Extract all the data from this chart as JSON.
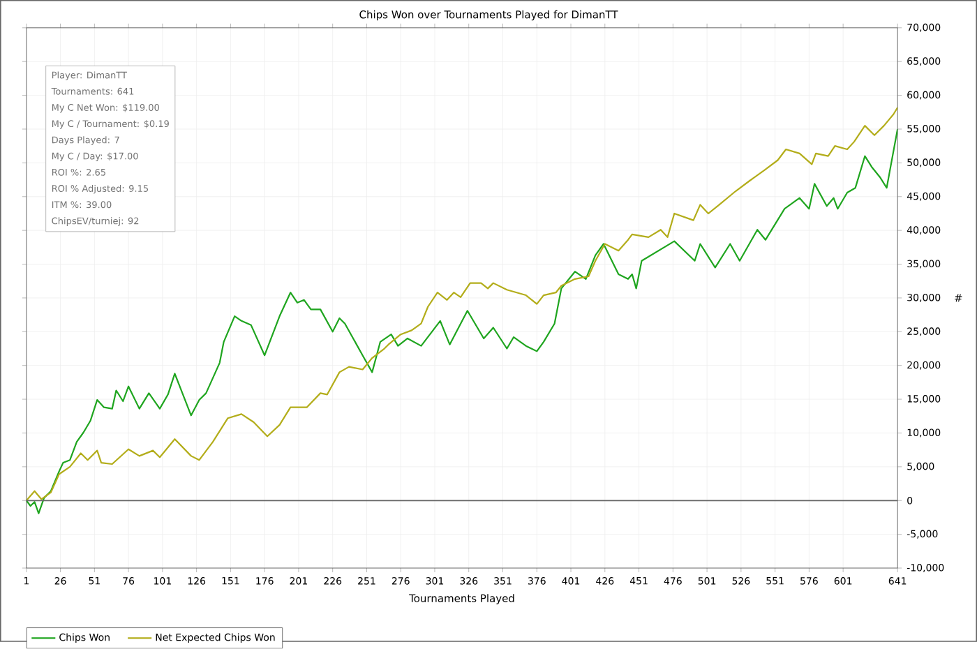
{
  "chart_data": {
    "type": "line",
    "title": "Chips Won over Tournaments Played for DimanTT",
    "xlabel": "Tournaments Played",
    "ylabel": "#",
    "xlim": [
      1,
      641
    ],
    "xticks": [
      1,
      26,
      51,
      76,
      101,
      126,
      151,
      176,
      201,
      226,
      251,
      276,
      301,
      326,
      351,
      376,
      401,
      426,
      451,
      476,
      501,
      526,
      551,
      576,
      601,
      641
    ],
    "ylim": [
      -10000,
      70000
    ],
    "yticks": [
      {
        "value": -10000,
        "label": "-10,000"
      },
      {
        "value": -5000,
        "label": "-5,000"
      },
      {
        "value": 0,
        "label": "0"
      },
      {
        "value": 5000,
        "label": "5,000"
      },
      {
        "value": 10000,
        "label": "10,000"
      },
      {
        "value": 15000,
        "label": "15,000"
      },
      {
        "value": 20000,
        "label": "20,000"
      },
      {
        "value": 25000,
        "label": "25,000"
      },
      {
        "value": 30000,
        "label": "30,000"
      },
      {
        "value": 35000,
        "label": "35,000"
      },
      {
        "value": 40000,
        "label": "40,000"
      },
      {
        "value": 45000,
        "label": "45,000"
      },
      {
        "value": 50000,
        "label": "50,000"
      },
      {
        "value": 55000,
        "label": "55,000"
      },
      {
        "value": 60000,
        "label": "60,000"
      },
      {
        "value": 65000,
        "label": "65,000"
      },
      {
        "value": 70000,
        "label": "70,000"
      }
    ],
    "grid": true,
    "legend": "bottom",
    "ref_lines": [
      {
        "axis": "y",
        "value": 0,
        "color": "#666666"
      }
    ],
    "annotations": [
      "Player: DimanTT",
      "Tournaments: 641",
      "My C Net Won: $119.00",
      "My C / Tournament: $0.19",
      "Days Played: 7",
      "My C / Day: $17.00",
      "ROI %: 2.65",
      "ROI % Adjusted: 9.15",
      "ITM %: 39.00",
      "ChipsEV/turniej: 92"
    ],
    "series": [
      {
        "name": "Chips Won",
        "color": "#1fa51f",
        "x": [
          1,
          4,
          7,
          10,
          14,
          19,
          25,
          28,
          33,
          38,
          43,
          48,
          53,
          58,
          64,
          67,
          72,
          76,
          84,
          91,
          99,
          105,
          110,
          122,
          128,
          133,
          143,
          146,
          154,
          159,
          166,
          176,
          187,
          195,
          200,
          205,
          210,
          217,
          226,
          231,
          235,
          248,
          255,
          261,
          269,
          274,
          281,
          291,
          305,
          312,
          325,
          337,
          344,
          354,
          359,
          368,
          376,
          381,
          389,
          394,
          404,
          412,
          419,
          425,
          436,
          443,
          446,
          449,
          453,
          477,
          492,
          496,
          507,
          518,
          525,
          538,
          544,
          558,
          569,
          576,
          580,
          589,
          594,
          597,
          604,
          610,
          617,
          622,
          628,
          633,
          641
        ],
        "values": [
          0,
          -800,
          -200,
          -1900,
          400,
          1400,
          4300,
          5600,
          6000,
          8700,
          10100,
          11800,
          14900,
          13800,
          13600,
          16300,
          14700,
          16900,
          13600,
          15900,
          13600,
          15700,
          18800,
          12600,
          14900,
          15900,
          20400,
          23500,
          27300,
          26600,
          26000,
          21500,
          27300,
          30800,
          29300,
          29700,
          28300,
          28300,
          25000,
          27000,
          26200,
          21500,
          19000,
          23500,
          24600,
          22900,
          24000,
          22900,
          26600,
          23100,
          28100,
          24000,
          25600,
          22500,
          24200,
          22900,
          22100,
          23500,
          26200,
          31400,
          33900,
          32800,
          36300,
          38000,
          33500,
          32800,
          33500,
          31400,
          35500,
          38400,
          35500,
          38000,
          34500,
          38000,
          35500,
          40100,
          38600,
          43200,
          44800,
          43200,
          46900,
          43600,
          44800,
          43200,
          45600,
          46300,
          51000,
          49400,
          47900,
          46300,
          55000
        ]
      },
      {
        "name": "Net Expected Chips Won",
        "color": "#b3ad1a",
        "x": [
          1,
          7,
          12,
          19,
          25,
          33,
          41,
          46,
          53,
          56,
          64,
          76,
          84,
          94,
          99,
          110,
          122,
          128,
          138,
          149,
          159,
          168,
          178,
          187,
          195,
          207,
          217,
          222,
          231,
          238,
          248,
          255,
          264,
          267,
          276,
          284,
          291,
          296,
          303,
          310,
          315,
          320,
          327,
          335,
          340,
          344,
          354,
          368,
          376,
          381,
          390,
          394,
          404,
          414,
          419,
          426,
          436,
          443,
          446,
          458,
          467,
          472,
          477,
          491,
          496,
          502,
          510,
          522,
          532,
          543,
          553,
          559,
          569,
          578,
          581,
          590,
          595,
          604,
          609,
          617,
          624,
          631,
          638,
          641
        ],
        "values": [
          0,
          1400,
          200,
          1200,
          3900,
          5000,
          7000,
          6000,
          7400,
          5600,
          5400,
          7600,
          6600,
          7400,
          6400,
          9100,
          6600,
          6000,
          8700,
          12200,
          12800,
          11600,
          9500,
          11200,
          13800,
          13800,
          15900,
          15700,
          19000,
          19800,
          19400,
          21100,
          22500,
          23100,
          24600,
          25200,
          26200,
          28700,
          30800,
          29700,
          30800,
          30100,
          32200,
          32200,
          31400,
          32200,
          31200,
          30400,
          29100,
          30400,
          30800,
          31800,
          32800,
          33200,
          35500,
          38000,
          37000,
          38600,
          39400,
          39000,
          40100,
          39000,
          42500,
          41500,
          43800,
          42500,
          43800,
          45800,
          47300,
          48900,
          50400,
          52000,
          51400,
          49800,
          51400,
          51000,
          52500,
          52000,
          53100,
          55500,
          54100,
          55500,
          57200,
          58200
        ]
      }
    ]
  }
}
